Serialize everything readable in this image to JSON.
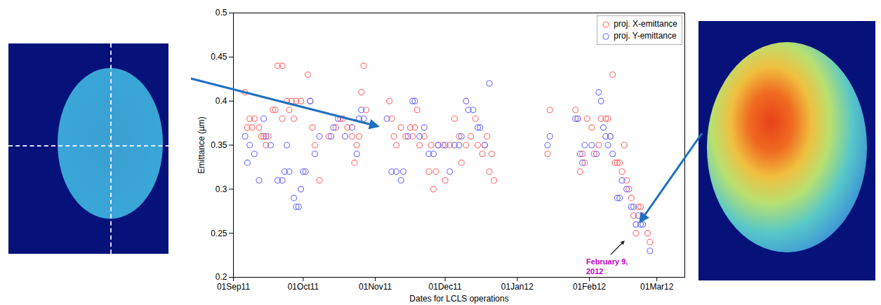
{
  "chart_data": {
    "type": "scatter",
    "xlabel": "Dates for LCLS operations",
    "ylabel": "Emittance (µm)",
    "xlim": [
      "2011-09-01",
      "2012-03-13"
    ],
    "xticks": [
      {
        "value": "2011-09-01",
        "label": "01Sep11"
      },
      {
        "value": "2011-10-01",
        "label": "01Oct11"
      },
      {
        "value": "2011-11-01",
        "label": "01Nov11"
      },
      {
        "value": "2011-12-01",
        "label": "01Dec11"
      },
      {
        "value": "2012-01-01",
        "label": "01Jan12"
      },
      {
        "value": "2012-02-01",
        "label": "01Feb12"
      },
      {
        "value": "2012-03-01",
        "label": "01Mar12"
      }
    ],
    "ylim": [
      0.2,
      0.5
    ],
    "yticks": [
      0.2,
      0.25,
      0.3,
      0.35,
      0.4,
      0.45,
      0.5
    ],
    "grid": false,
    "legend": "upper right",
    "annotations": [
      {
        "text": "February 9, 2012"
      }
    ],
    "series": [
      {
        "name": "proj. X-emittance",
        "color": "#ff6a6a",
        "marker": "circle",
        "x": [
          "2011-09-06",
          "2011-09-07",
          "2011-09-08",
          "2011-09-09",
          "2011-09-10",
          "2011-09-12",
          "2011-09-13",
          "2011-09-14",
          "2011-09-15",
          "2011-09-16",
          "2011-09-18",
          "2011-09-19",
          "2011-09-20",
          "2011-09-22",
          "2011-09-22",
          "2011-09-24",
          "2011-09-25",
          "2011-09-26",
          "2011-09-27",
          "2011-09-28",
          "2011-09-30",
          "2011-10-03",
          "2011-10-04",
          "2011-10-05",
          "2011-10-06",
          "2011-10-08",
          "2011-10-12",
          "2011-10-15",
          "2011-10-17",
          "2011-10-18",
          "2011-10-20",
          "2011-10-22",
          "2011-10-23",
          "2011-10-24",
          "2011-10-25",
          "2011-10-26",
          "2011-10-27",
          "2011-10-28",
          "2011-11-07",
          "2011-11-08",
          "2011-11-09",
          "2011-11-10",
          "2011-11-12",
          "2011-11-14",
          "2011-11-16",
          "2011-11-17",
          "2011-11-18",
          "2011-11-19",
          "2011-11-20",
          "2011-11-22",
          "2011-11-24",
          "2011-11-25",
          "2011-11-26",
          "2011-11-27",
          "2011-11-28",
          "2011-11-30",
          "2011-12-01",
          "2011-12-03",
          "2011-12-05",
          "2011-12-07",
          "2011-12-08",
          "2011-12-10",
          "2011-12-12",
          "2011-12-14",
          "2011-12-15",
          "2011-12-17",
          "2011-12-18",
          "2011-12-19",
          "2011-12-20",
          "2011-12-21",
          "2011-12-22",
          "2012-01-14",
          "2012-01-15",
          "2012-01-26",
          "2012-01-27",
          "2012-01-28",
          "2012-01-29",
          "2012-01-30",
          "2012-01-31",
          "2012-02-02",
          "2012-02-03",
          "2012-02-05",
          "2012-02-06",
          "2012-02-08",
          "2012-02-09",
          "2012-02-10",
          "2012-02-11",
          "2012-02-12",
          "2012-02-13",
          "2012-02-14",
          "2012-02-15",
          "2012-02-16",
          "2012-02-17",
          "2012-02-18",
          "2012-02-19",
          "2012-02-20",
          "2012-02-21",
          "2012-02-22",
          "2012-02-23",
          "2012-02-24",
          "2012-02-26",
          "2012-02-27"
        ],
        "values": [
          0.41,
          0.37,
          0.38,
          0.37,
          0.38,
          0.37,
          0.36,
          0.36,
          0.35,
          0.36,
          0.39,
          0.39,
          0.44,
          0.44,
          0.38,
          0.4,
          0.39,
          0.4,
          0.38,
          0.4,
          0.4,
          0.43,
          0.4,
          0.37,
          0.35,
          0.31,
          0.36,
          0.37,
          0.38,
          0.38,
          0.37,
          0.36,
          0.33,
          0.35,
          0.36,
          0.41,
          0.44,
          0.39,
          0.4,
          0.38,
          0.36,
          0.35,
          0.37,
          0.36,
          0.37,
          0.36,
          0.37,
          0.39,
          0.35,
          0.36,
          0.32,
          0.35,
          0.3,
          0.32,
          0.35,
          0.35,
          0.31,
          0.35,
          0.38,
          0.36,
          0.33,
          0.35,
          0.36,
          0.38,
          0.35,
          0.34,
          0.35,
          0.36,
          0.32,
          0.34,
          0.31,
          0.34,
          0.39,
          0.39,
          0.38,
          0.32,
          0.34,
          0.33,
          0.38,
          0.37,
          0.34,
          0.35,
          0.38,
          0.38,
          0.38,
          0.36,
          0.43,
          0.33,
          0.33,
          0.33,
          0.32,
          0.35,
          0.31,
          0.3,
          0.29,
          0.27,
          0.25,
          0.28,
          0.28,
          0.27,
          0.25,
          0.24
        ]
      },
      {
        "name": "proj. Y-emittance",
        "color": "#6a6aff",
        "marker": "circle",
        "x": [
          "2011-09-06",
          "2011-09-07",
          "2011-09-08",
          "2011-09-10",
          "2011-09-12",
          "2011-09-14",
          "2011-09-15",
          "2011-09-17",
          "2011-09-20",
          "2011-09-22",
          "2011-09-23",
          "2011-09-24",
          "2011-09-25",
          "2011-09-27",
          "2011-09-28",
          "2011-09-29",
          "2011-09-30",
          "2011-10-01",
          "2011-10-02",
          "2011-10-04",
          "2011-10-06",
          "2011-10-08",
          "2011-10-13",
          "2011-10-14",
          "2011-10-16",
          "2011-10-19",
          "2011-10-22",
          "2011-10-24",
          "2011-10-25",
          "2011-10-26",
          "2011-10-27",
          "2011-11-06",
          "2011-11-08",
          "2011-11-10",
          "2011-11-12",
          "2011-11-13",
          "2011-11-15",
          "2011-11-17",
          "2011-11-18",
          "2011-11-20",
          "2011-11-22",
          "2011-11-24",
          "2011-11-26",
          "2011-11-28",
          "2011-12-01",
          "2011-12-03",
          "2011-12-05",
          "2011-12-07",
          "2011-12-08",
          "2011-12-10",
          "2011-12-11",
          "2011-12-13",
          "2011-12-15",
          "2011-12-16",
          "2011-12-18",
          "2011-12-20",
          "2012-01-14",
          "2012-01-15",
          "2012-01-26",
          "2012-01-27",
          "2012-01-28",
          "2012-01-29",
          "2012-01-30",
          "2012-02-02",
          "2012-02-04",
          "2012-02-05",
          "2012-02-06",
          "2012-02-07",
          "2012-02-08",
          "2012-02-09",
          "2012-02-10",
          "2012-02-11",
          "2012-02-13",
          "2012-02-14",
          "2012-02-15",
          "2012-02-17",
          "2012-02-19",
          "2012-02-20",
          "2012-02-21",
          "2012-02-22",
          "2012-02-23",
          "2012-02-24",
          "2012-02-27"
        ],
        "values": [
          0.36,
          0.33,
          0.35,
          0.34,
          0.31,
          0.38,
          0.36,
          0.35,
          0.31,
          0.31,
          0.32,
          0.35,
          0.32,
          0.29,
          0.28,
          0.28,
          0.3,
          0.32,
          0.32,
          0.4,
          0.34,
          0.36,
          0.36,
          0.37,
          0.38,
          0.36,
          0.37,
          0.34,
          0.38,
          0.39,
          0.38,
          0.38,
          0.32,
          0.32,
          0.31,
          0.32,
          0.36,
          0.4,
          0.4,
          0.36,
          0.37,
          0.34,
          0.34,
          0.35,
          0.35,
          0.32,
          0.35,
          0.35,
          0.36,
          0.4,
          0.39,
          0.39,
          0.37,
          0.37,
          0.35,
          0.42,
          0.35,
          0.36,
          0.38,
          0.38,
          0.34,
          0.33,
          0.35,
          0.35,
          0.34,
          0.41,
          0.4,
          0.37,
          0.36,
          0.35,
          0.36,
          0.34,
          0.29,
          0.29,
          0.31,
          0.3,
          0.28,
          0.28,
          0.26,
          0.27,
          0.26,
          0.26,
          0.23
        ]
      }
    ]
  }
}
